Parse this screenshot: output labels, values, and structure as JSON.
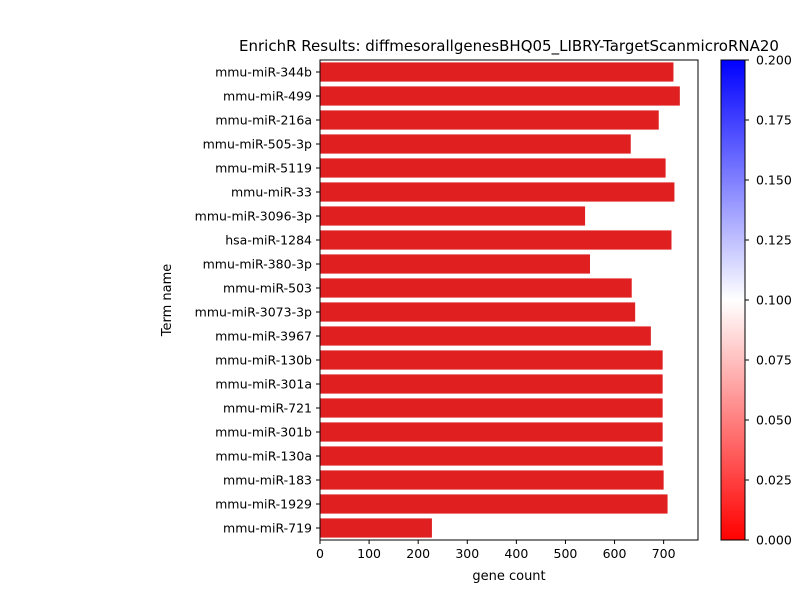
{
  "chart_data": {
    "type": "bar",
    "orientation": "horizontal",
    "title": "EnrichR Results: diffmesorallgenesBHQ05_LIBRY-TargetScanmicroRNA20",
    "xlabel": "gene count",
    "ylabel": "Term name",
    "xlim": [
      0,
      770
    ],
    "xticks": [
      0,
      100,
      200,
      300,
      400,
      500,
      600,
      700
    ],
    "categories": [
      "mmu-miR-344b",
      "mmu-miR-499",
      "mmu-miR-216a",
      "mmu-miR-505-3p",
      "mmu-miR-5119",
      "mmu-miR-33",
      "mmu-miR-3096-3p",
      "hsa-miR-1284",
      "mmu-miR-380-3p",
      "mmu-miR-503",
      "mmu-miR-3073-3p",
      "mmu-miR-3967",
      "mmu-miR-130b",
      "mmu-miR-301a",
      "mmu-miR-721",
      "mmu-miR-301b",
      "mmu-miR-130a",
      "mmu-miR-183",
      "mmu-miR-1929",
      "mmu-miR-719"
    ],
    "values": [
      720,
      733,
      690,
      633,
      704,
      722,
      540,
      716,
      550,
      635,
      642,
      674,
      698,
      698,
      698,
      698,
      698,
      700,
      708,
      228
    ],
    "bar_color": "#e02020",
    "grid": false,
    "colorbar": {
      "range": [
        0,
        0.2
      ],
      "ticks": [
        "0.000",
        "0.025",
        "0.050",
        "0.075",
        "0.100",
        "0.125",
        "0.150",
        "0.175",
        "0.200"
      ],
      "colors": [
        "#ff0000",
        "#ffffff",
        "#0000ff"
      ]
    }
  }
}
